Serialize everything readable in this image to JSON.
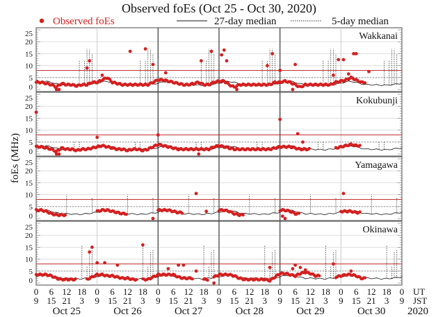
{
  "chart_data": {
    "type": "scatter",
    "title": "Observed foEs (Oct 25 - Oct 30, 2020)",
    "ylabel": "foEs (MHz)",
    "ylim": [
      0,
      25
    ],
    "yticks": [
      0,
      5,
      10,
      15,
      20,
      25
    ],
    "x_unit": "hours UT since Oct 25 00:00",
    "xlim": [
      0,
      144
    ],
    "legend": {
      "observed": "Observed foEs",
      "median27": "27-day median",
      "median5": "5-day median",
      "placement": "top"
    },
    "ut_ticks": [
      "0",
      "6",
      "12",
      "18"
    ],
    "jst_ticks": [
      "9",
      "15",
      "21",
      "3"
    ],
    "ut_label": "UT",
    "jst_label": "JST",
    "final_tick": {
      "ut": "0",
      "jst": "9"
    },
    "dates": [
      "Oct 25",
      "Oct 26",
      "Oct 27",
      "Oct 28",
      "Oct 29",
      "Oct 30"
    ],
    "year": "2020",
    "reference_lines": {
      "red_MHz": 8,
      "dotted_MHz": 5
    },
    "colors": {
      "observed": "#d42020",
      "red_line": "#c03030",
      "median": "#111111"
    },
    "median27_2h": [
      2.6,
      3.2,
      3.4,
      3.0,
      2.4,
      2.0,
      2.0,
      1.9,
      1.8,
      1.8,
      2.0,
      2.3
    ],
    "stations": [
      {
        "name": "Wakkanai",
        "observed_2h": [
          3,
          3,
          2.5,
          2,
          1,
          2.5,
          2,
          2,
          1.5,
          2,
          2,
          3,
          3,
          4,
          5,
          3,
          2.5,
          2,
          2,
          2,
          2,
          2,
          2,
          3,
          4,
          4,
          3.5,
          3,
          2.5,
          2,
          2,
          2.5,
          3,
          2,
          2,
          3,
          3.5,
          3.5,
          2,
          1,
          2,
          2,
          2,
          2,
          2,
          2,
          2,
          3,
          3,
          3.5,
          3,
          2,
          1,
          2,
          2,
          2,
          2,
          2,
          2,
          3,
          3.5,
          4,
          5,
          4,
          3,
          null,
          null,
          null,
          null,
          null,
          null,
          null
        ],
        "outliers": [
          [
            21,
            12
          ],
          [
            20,
            9
          ],
          [
            26,
            6
          ],
          [
            37,
            16
          ],
          [
            43,
            17
          ],
          [
            46,
            10.5
          ],
          [
            51,
            7
          ],
          [
            65,
            12
          ],
          [
            69,
            16
          ],
          [
            73,
            14.5
          ],
          [
            74,
            16.5
          ],
          [
            75,
            12
          ],
          [
            91,
            10
          ],
          [
            93,
            15
          ],
          [
            96,
            8
          ],
          [
            102,
            10.5
          ],
          [
            117,
            6
          ],
          [
            119,
            12.5
          ],
          [
            121,
            12.5
          ],
          [
            123,
            6.5
          ],
          [
            125,
            15
          ],
          [
            126,
            15
          ],
          [
            131,
            7.5
          ],
          [
            8,
            0
          ],
          [
            9,
            0
          ],
          [
            79,
            0
          ],
          [
            101,
            0
          ]
        ],
        "median5_spikes": [
          [
            17,
            12
          ],
          [
            19,
            12
          ],
          [
            20,
            17
          ],
          [
            21,
            17
          ],
          [
            22,
            15
          ]
        ]
      },
      {
        "name": "Kokubunji",
        "observed_2h": [
          3,
          3,
          2.5,
          2,
          1,
          2.5,
          2,
          2,
          1.5,
          2,
          2,
          2.5,
          3,
          3.5,
          3,
          2.5,
          2,
          2,
          1.5,
          2,
          2,
          1.5,
          2,
          3,
          4,
          3.5,
          3,
          2.5,
          2,
          2,
          2,
          2,
          2,
          2,
          2,
          3,
          3.5,
          3,
          2.5,
          2,
          2,
          2,
          2,
          2,
          2,
          2,
          2,
          2.5,
          3,
          3,
          3,
          2.5,
          2,
          2,
          null,
          null,
          null,
          null,
          null,
          2.5,
          3,
          3.5,
          4,
          3.5,
          null,
          null,
          null,
          null,
          null,
          null,
          null,
          null
        ],
        "outliers": [
          [
            0,
            17.5
          ],
          [
            24,
            7
          ],
          [
            48,
            8
          ],
          [
            96,
            14.5
          ],
          [
            103,
            8.5
          ],
          [
            105,
            5
          ],
          [
            8,
            0
          ],
          [
            9,
            0
          ],
          [
            64,
            0
          ]
        ],
        "median5_spikes": [
          [
            15,
            5
          ],
          [
            17,
            5
          ]
        ]
      },
      {
        "name": "Yamagawa",
        "observed_2h": [
          3.5,
          3.5,
          3,
          2,
          1.5,
          1.5,
          null,
          null,
          null,
          null,
          null,
          null,
          3,
          3.5,
          3.5,
          3,
          2.5,
          2,
          null,
          null,
          null,
          null,
          null,
          null,
          3.5,
          3.5,
          3.5,
          3,
          2.5,
          null,
          null,
          null,
          null,
          null,
          null,
          null,
          3.5,
          3.5,
          3,
          2,
          1.5,
          null,
          null,
          null,
          null,
          null,
          null,
          null,
          3.5,
          3.5,
          3,
          2,
          null,
          null,
          null,
          null,
          null,
          null,
          null,
          null,
          3,
          3,
          3,
          2.5,
          null,
          null,
          null,
          null,
          null,
          null,
          null,
          null
        ],
        "outliers": [
          [
            63,
            10.5
          ],
          [
            97,
            1
          ],
          [
            121,
            10.5
          ],
          [
            46,
            0
          ],
          [
            67,
            3
          ],
          [
            98,
            0
          ]
        ],
        "median5_spikes": [
          [
            12,
            10
          ],
          [
            22,
            8.5
          ]
        ]
      },
      {
        "name": "Okinawa",
        "observed_2h": [
          3.5,
          3.5,
          3.5,
          3,
          2,
          1.5,
          1.5,
          1.5,
          null,
          null,
          1.5,
          2.5,
          3.5,
          3.5,
          3,
          3,
          2.5,
          2,
          2,
          1.5,
          null,
          1.5,
          1.5,
          2.5,
          3.5,
          3.5,
          3.5,
          3.5,
          2.5,
          2,
          2,
          null,
          null,
          1.5,
          null,
          2.5,
          3.5,
          3.5,
          3.5,
          3,
          2,
          1.5,
          1.5,
          1.5,
          1.5,
          1.5,
          1,
          2.5,
          4,
          4,
          3.5,
          3,
          4,
          4.5,
          4,
          3,
          null,
          null,
          null,
          2.5,
          3,
          3.5,
          3.5,
          3,
          2,
          null,
          null,
          null,
          null,
          null,
          null,
          null
        ],
        "outliers": [
          [
            21,
            13
          ],
          [
            22,
            15
          ],
          [
            24,
            8.5
          ],
          [
            27,
            8.5
          ],
          [
            32,
            7.5
          ],
          [
            42,
            16
          ],
          [
            52,
            6
          ],
          [
            56,
            7.5
          ],
          [
            58,
            7.5
          ],
          [
            63,
            5
          ],
          [
            70,
            0
          ],
          [
            92,
            6.5
          ],
          [
            101,
            6
          ],
          [
            102,
            7.5
          ],
          [
            104,
            6.5
          ],
          [
            106,
            5.5
          ],
          [
            117,
            8
          ],
          [
            124,
            5
          ]
        ],
        "median5_spikes": [
          [
            18,
            16
          ],
          [
            20,
            7
          ],
          [
            21,
            13
          ],
          [
            22,
            14
          ]
        ]
      }
    ]
  }
}
